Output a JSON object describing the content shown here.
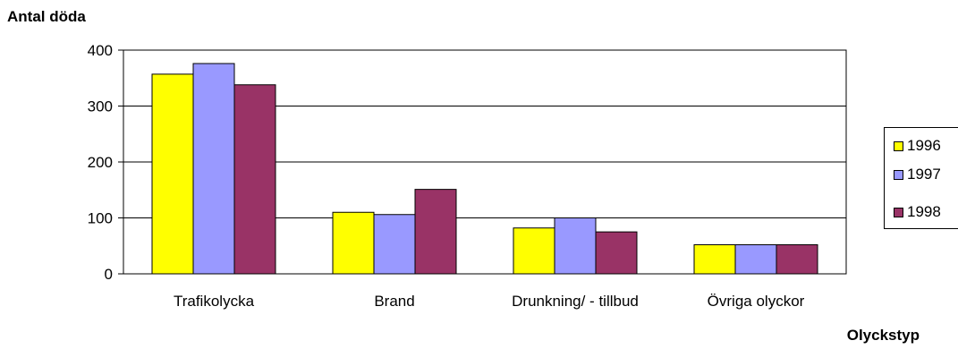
{
  "chart_data": {
    "type": "bar",
    "title": "",
    "ylabel": "Antal döda",
    "xlabel": "Olyckstyp",
    "ylim": [
      0,
      400
    ],
    "yticks": [
      0,
      100,
      200,
      300,
      400
    ],
    "grid": true,
    "legend": "right",
    "categories": [
      "Trafikolycka",
      "Brand",
      "Drunkning/ - tillbud",
      "Övriga olyckor"
    ],
    "series": [
      {
        "name": "1996",
        "color": "#ffff00",
        "values": [
          357,
          110,
          82,
          52
        ]
      },
      {
        "name": "1997",
        "color": "#9999ff",
        "values": [
          376,
          106,
          100,
          52
        ]
      },
      {
        "name": "1998",
        "color": "#993366",
        "values": [
          338,
          151,
          75,
          52
        ]
      }
    ]
  }
}
